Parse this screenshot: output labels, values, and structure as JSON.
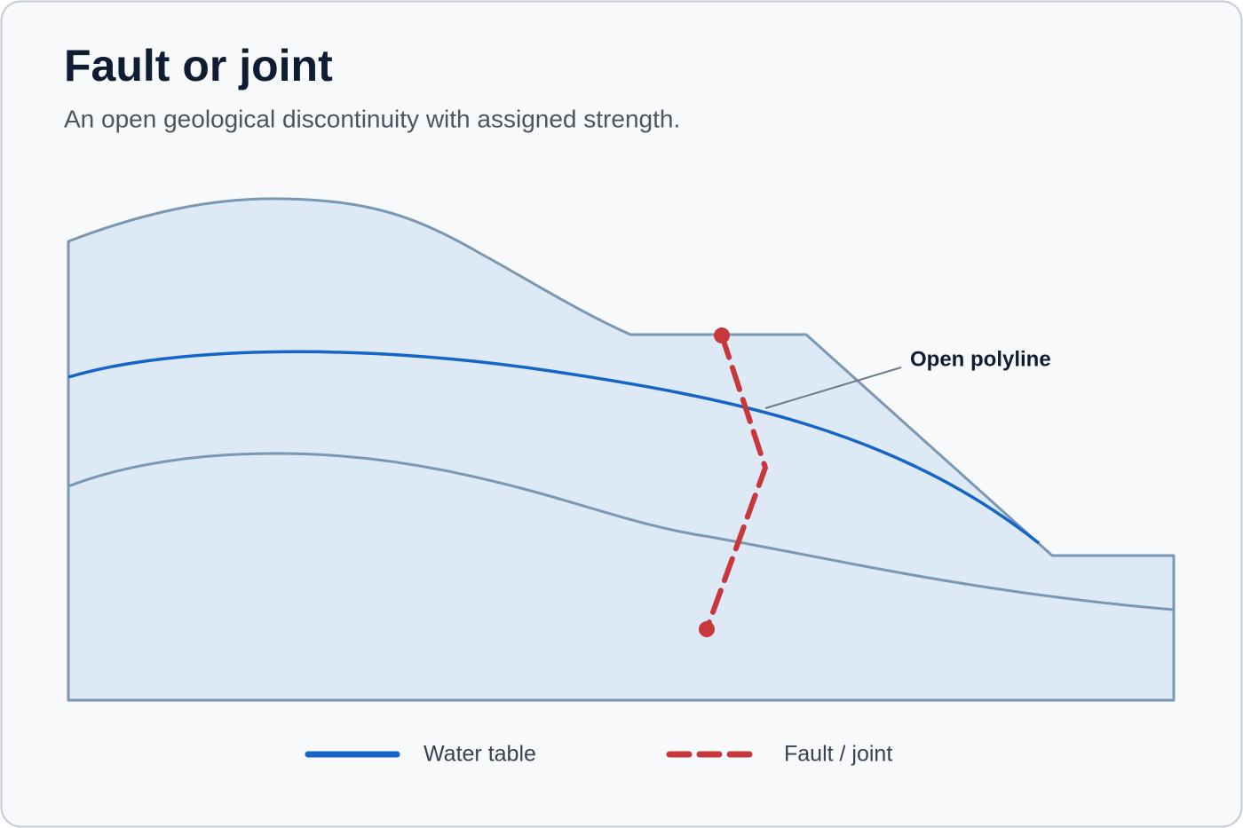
{
  "header": {
    "title": "Fault or joint",
    "subtitle": "An open geological discontinuity with assigned strength."
  },
  "diagram": {
    "annotation": "Open polyline"
  },
  "legend": {
    "items": [
      {
        "label": "Water table"
      },
      {
        "label": "Fault / joint"
      }
    ]
  }
}
